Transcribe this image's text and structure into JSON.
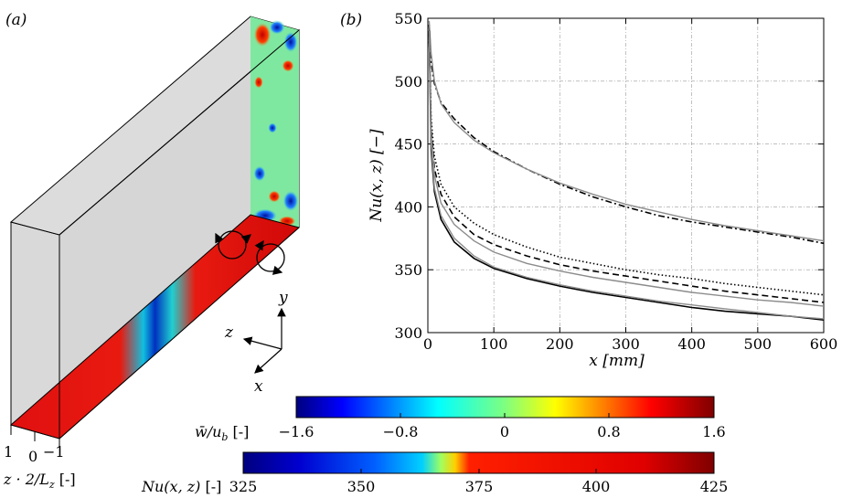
{
  "panel_a": {
    "label": "(a)",
    "axes": {
      "y": "y",
      "z": "z",
      "x": "x"
    },
    "z_ticks": [
      "1",
      "0",
      "−1"
    ],
    "z_label": "z · 2/L",
    "z_label_sub": "z",
    "z_label_unit": "[-]"
  },
  "colorbars": [
    {
      "label": "w̄/u",
      "label_sub": "b",
      "label_unit": "[-]",
      "ticks": [
        "−1.6",
        "−0.8",
        "0",
        "0.8",
        "1.6"
      ],
      "range": [
        -1.6,
        1.6
      ],
      "colormap": "jet"
    },
    {
      "label": "Nu(x, z)",
      "label_unit": "[-]",
      "ticks": [
        "325",
        "350",
        "375",
        "400",
        "425"
      ],
      "range": [
        325,
        425
      ],
      "colormap": "jet"
    }
  ],
  "colors": {
    "line": "#000000",
    "fit": "#8c8c8c",
    "grid": "#999999",
    "wall": "#d9d9d9"
  },
  "chart_data": {
    "type": "line",
    "panel_label": "(b)",
    "xlabel": "x [mm]",
    "ylabel": "Nu(x, z) [−]",
    "xlim": [
      0,
      600
    ],
    "ylim": [
      300,
      550
    ],
    "xticks": [
      "0",
      "100",
      "200",
      "300",
      "400",
      "500",
      "600"
    ],
    "yticks": [
      "300",
      "350",
      "400",
      "450",
      "500",
      "550"
    ],
    "grid": true,
    "series": [
      {
        "style": "dashdot",
        "color": "#000000",
        "x": [
          2,
          5,
          10,
          20,
          40,
          70,
          100,
          150,
          200,
          250,
          300,
          350,
          400,
          450,
          500,
          550,
          600
        ],
        "y": [
          545,
          515,
          498,
          483,
          470,
          455,
          444,
          430,
          418,
          408,
          400,
          393,
          388,
          384,
          380,
          376,
          371
        ]
      },
      {
        "style": "solid",
        "color": "#8c8c8c",
        "x": [
          2,
          5,
          10,
          20,
          40,
          70,
          100,
          150,
          200,
          250,
          300,
          350,
          400,
          450,
          500,
          550,
          600
        ],
        "y": [
          548,
          522,
          500,
          482,
          467,
          453,
          443,
          430,
          419,
          410,
          402,
          396,
          390,
          385,
          381,
          377,
          373
        ]
      },
      {
        "style": "dotted",
        "color": "#000000",
        "x": [
          2,
          5,
          10,
          20,
          40,
          70,
          100,
          150,
          200,
          250,
          300,
          350,
          400,
          450,
          500,
          550,
          600
        ],
        "y": [
          540,
          470,
          440,
          418,
          400,
          387,
          378,
          368,
          360,
          355,
          350,
          346,
          343,
          339,
          336,
          333,
          330
        ]
      },
      {
        "style": "dashed",
        "color": "#000000",
        "x": [
          2,
          5,
          10,
          20,
          40,
          70,
          100,
          150,
          200,
          250,
          300,
          350,
          400,
          450,
          500,
          550,
          600
        ],
        "y": [
          540,
          462,
          430,
          410,
          392,
          378,
          370,
          361,
          354,
          349,
          345,
          341,
          337,
          333,
          330,
          327,
          324
        ]
      },
      {
        "style": "solid",
        "color": "#8c8c8c",
        "x": [
          2,
          5,
          10,
          20,
          40,
          70,
          100,
          150,
          200,
          250,
          300,
          350,
          400,
          450,
          500,
          550,
          600
        ],
        "y": [
          540,
          458,
          425,
          403,
          386,
          373,
          364,
          355,
          349,
          344,
          340,
          336,
          332,
          329,
          326,
          324,
          321
        ]
      },
      {
        "style": "solid",
        "color": "#000000",
        "x": [
          2,
          5,
          10,
          20,
          40,
          70,
          100,
          150,
          200,
          250,
          300,
          350,
          400,
          450,
          500,
          550,
          600
        ],
        "y": [
          540,
          445,
          412,
          390,
          372,
          359,
          351,
          343,
          337,
          332,
          328,
          324,
          320,
          317,
          315,
          313,
          310
        ]
      },
      {
        "style": "solid",
        "color": "#8c8c8c",
        "x": [
          2,
          5,
          10,
          20,
          40,
          70,
          100,
          150,
          200,
          250,
          300,
          350,
          400,
          450,
          500,
          550,
          600
        ],
        "y": [
          540,
          450,
          415,
          393,
          375,
          361,
          352,
          344,
          338,
          333,
          329,
          325,
          322,
          319,
          316,
          313,
          311
        ]
      }
    ]
  }
}
